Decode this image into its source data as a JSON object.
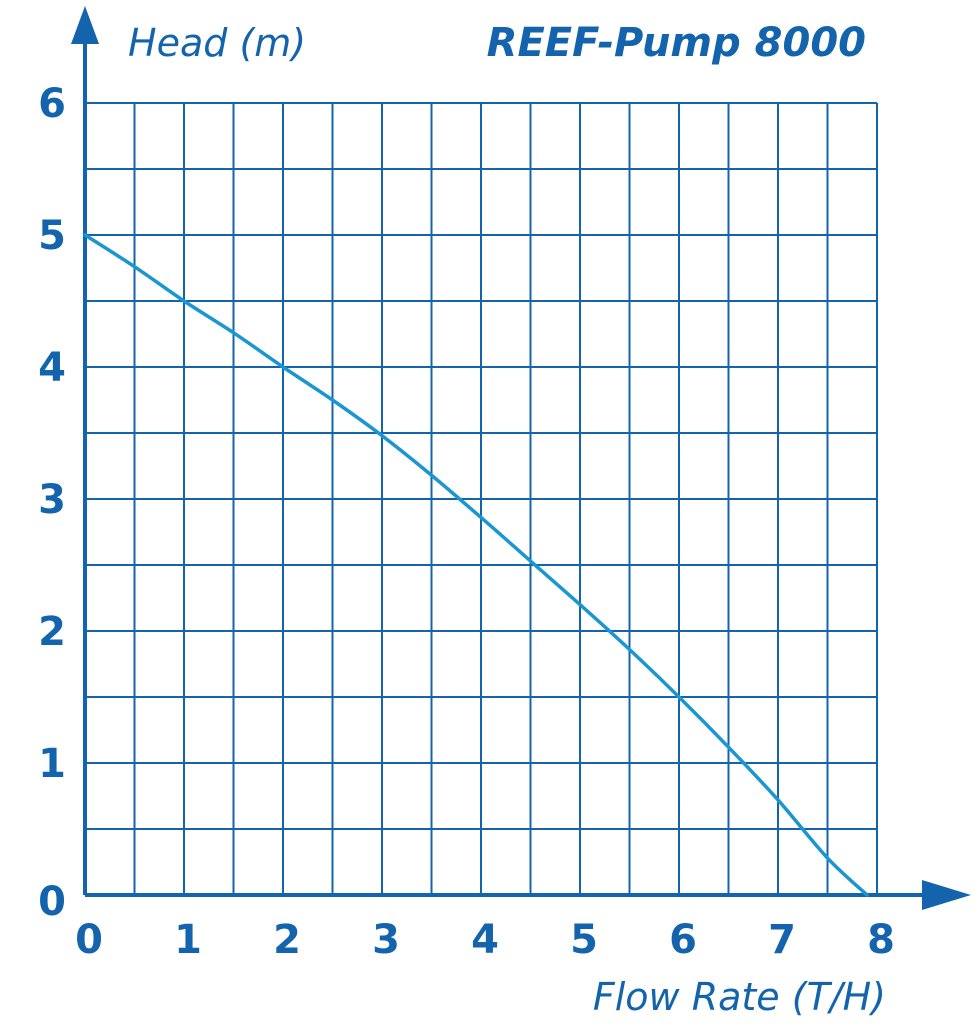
{
  "chart_data": {
    "type": "line",
    "title": "REEF-Pump 8000",
    "xlabel": "Flow Rate (T/H)",
    "ylabel": "Head (m)",
    "xlim": [
      0,
      8
    ],
    "ylim": [
      0,
      6
    ],
    "x_ticks": [
      "0",
      "1",
      "2",
      "3",
      "4",
      "5",
      "6",
      "7",
      "8"
    ],
    "y_ticks": [
      "0",
      "1",
      "2",
      "3",
      "4",
      "5",
      "6"
    ],
    "grid": true,
    "grid_step_x": 0.5,
    "grid_step_y": 0.5,
    "colors": {
      "grid": "#1464ad",
      "curve": "#1a96d2",
      "text": "#1464ad"
    },
    "series": [
      {
        "x": [
          0,
          0.5,
          1,
          1.5,
          2,
          2.5,
          3,
          3.5,
          4,
          4.5,
          5,
          5.5,
          6,
          6.5,
          7,
          7.5,
          7.9
        ],
        "y": [
          5.0,
          4.76,
          4.5,
          4.26,
          4.0,
          3.75,
          3.48,
          3.18,
          2.86,
          2.53,
          2.2,
          1.86,
          1.5,
          1.12,
          0.72,
          0.28,
          0.0
        ]
      }
    ]
  }
}
